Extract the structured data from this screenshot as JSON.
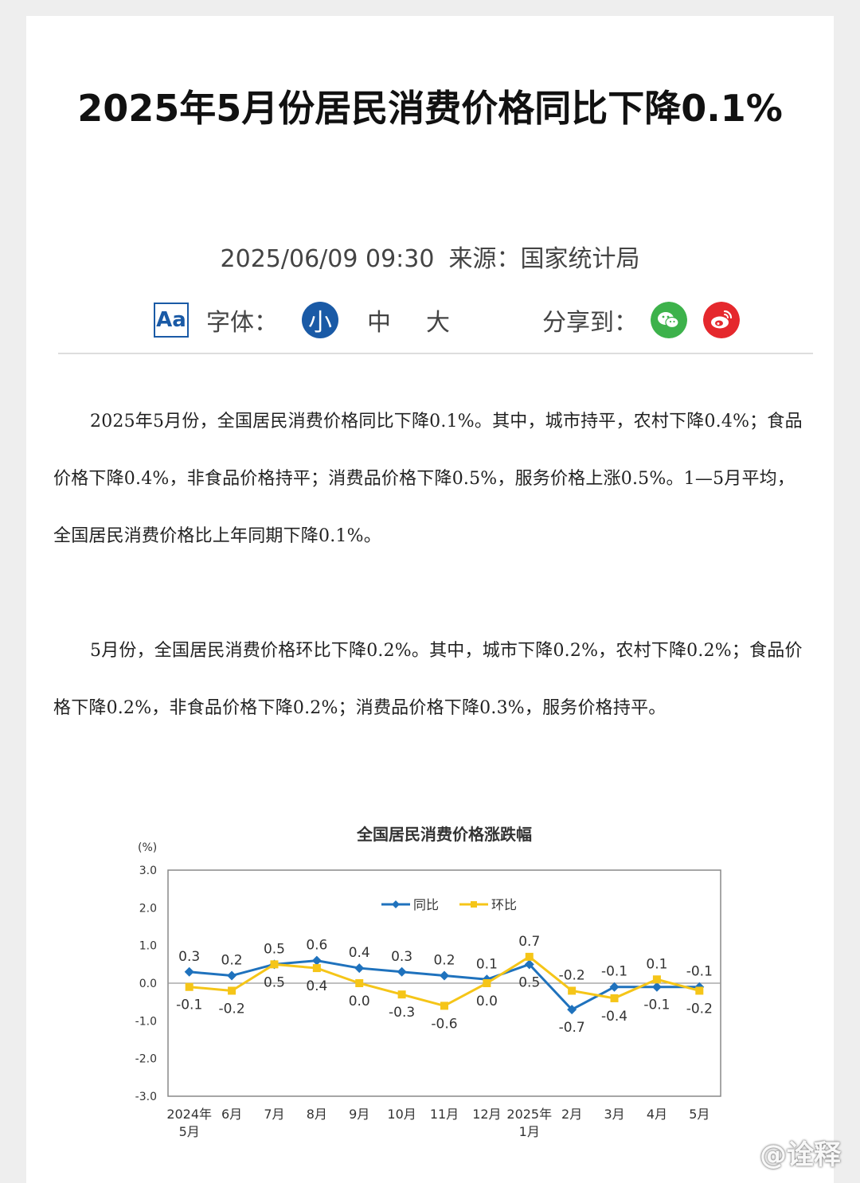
{
  "article": {
    "title": "2025年5月份居民消费价格同比下降0.1%",
    "date": "2025/06/09 09:30",
    "source": "来源：国家统计局"
  },
  "toolbar": {
    "aa_icon_label": "Aa",
    "font_label": "字体：",
    "sizes": [
      "小",
      "中",
      "大"
    ],
    "selected_size": "小",
    "share_label": "分享到：",
    "share_icons": [
      "wechat-icon",
      "weibo-icon"
    ]
  },
  "paragraphs": [
    "2025年5月份，全国居民消费价格同比下降0.1%。其中，城市持平，农村下降0.4%；食品价格下降0.4%，非食品价格持平；消费品价格下降0.5%，服务价格上涨0.5%。1—5月平均，全国居民消费价格比上年同期下降0.1%。",
    "5月份，全国居民消费价格环比下降0.2%。其中，城市下降0.2%，农村下降0.2%；食品价格下降0.2%，非食品价格下降0.2%；消费品价格下降0.3%，服务价格持平。"
  ],
  "chart_data": {
    "type": "line",
    "title": "全国居民消费价格涨跌幅",
    "ylabel": "(%)",
    "ylim": [
      -3.0,
      3.0
    ],
    "yticks": [
      "3.0",
      "2.0",
      "1.0",
      "0.0",
      "-1.0",
      "-2.0",
      "-3.0"
    ],
    "categories": [
      "2024年\n5月",
      "6月",
      "7月",
      "8月",
      "9月",
      "10月",
      "11月",
      "12月",
      "2025年\n1月",
      "2月",
      "3月",
      "4月",
      "5月"
    ],
    "legend_position": "top-center",
    "series": [
      {
        "name": "同比",
        "color": "#1f72bd",
        "values": [
          0.3,
          0.2,
          0.5,
          0.6,
          0.4,
          0.3,
          0.2,
          0.1,
          0.5,
          -0.7,
          -0.1,
          -0.1,
          -0.1
        ]
      },
      {
        "name": "环比",
        "color": "#f5c518",
        "values": [
          -0.1,
          -0.2,
          0.5,
          0.4,
          0.0,
          -0.3,
          -0.6,
          0.0,
          0.7,
          -0.2,
          -0.4,
          0.1,
          -0.2
        ]
      }
    ]
  },
  "watermark": "@诠释",
  "colors": {
    "accent": "#1a5aa6",
    "wechat": "#3db24b",
    "weibo": "#e5282d"
  }
}
